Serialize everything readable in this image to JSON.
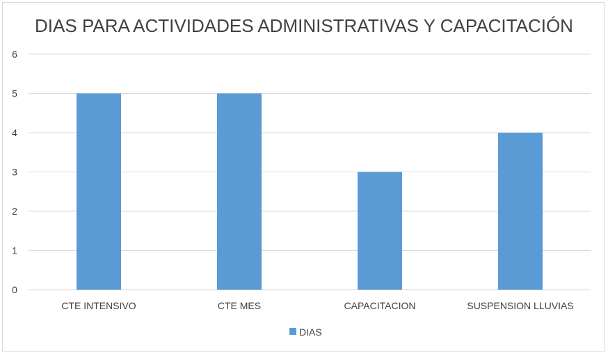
{
  "chart_data": {
    "type": "bar",
    "title": "DIAS PARA ACTIVIDADES ADMINISTRATIVAS Y CAPACITACIÓN",
    "categories": [
      "CTE INTENSIVO",
      "CTE MES",
      "CAPACITACION",
      "SUSPENSION LLUVIAS"
    ],
    "series": [
      {
        "name": "DIAS",
        "values": [
          5,
          5,
          3,
          4
        ]
      }
    ],
    "ylim": [
      0,
      6
    ],
    "yticks": [
      0,
      1,
      2,
      3,
      4,
      5,
      6
    ],
    "grid": true,
    "legend_position": "bottom",
    "colors": {
      "bar": "#5b9bd5",
      "grid": "#d9d9d9",
      "text": "#404040"
    }
  }
}
